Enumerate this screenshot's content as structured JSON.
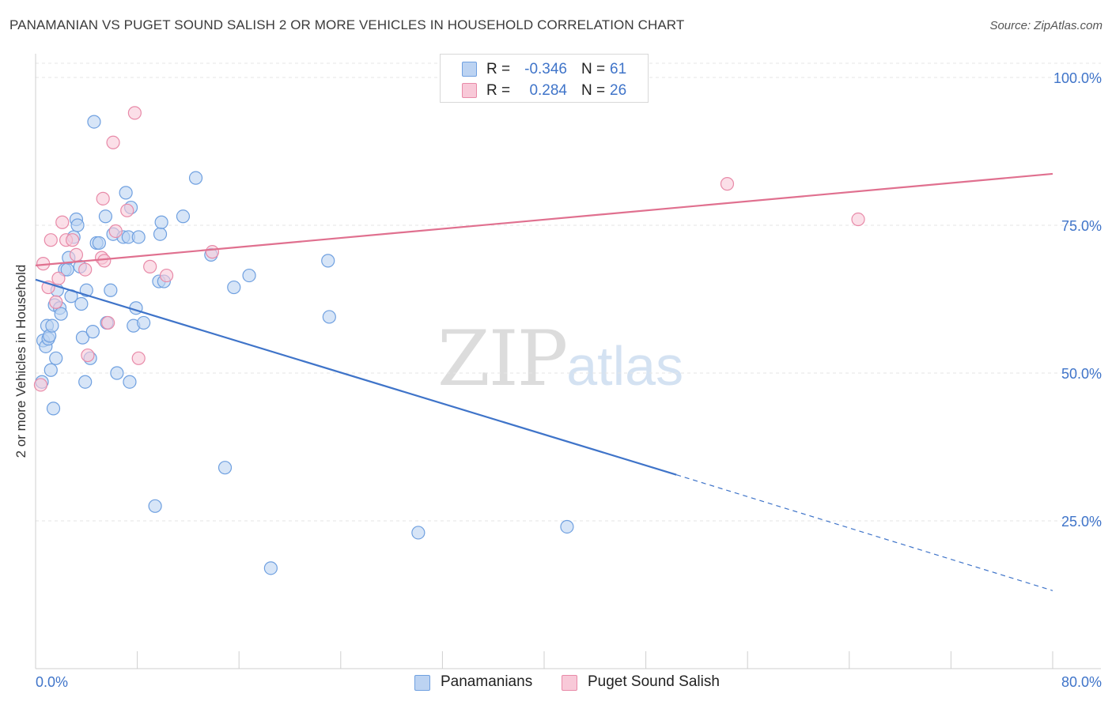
{
  "header": {
    "title": "PANAMANIAN VS PUGET SOUND SALISH 2 OR MORE VEHICLES IN HOUSEHOLD CORRELATION CHART",
    "source": "Source: ZipAtlas.com"
  },
  "watermark": {
    "zip": "ZIP",
    "atlas": "atlas"
  },
  "stats": [
    {
      "r_label": "R =",
      "r_value": "-0.346",
      "n_label": "N =",
      "n_value": "61",
      "color": "#6fa0e0",
      "fill": "#bcd3f2"
    },
    {
      "r_label": "R =",
      "r_value": "0.284",
      "n_label": "N =",
      "n_value": "26",
      "color": "#e88aa8",
      "fill": "#f8c9d8"
    }
  ],
  "legend": [
    {
      "label": "Panamanians",
      "color": "#6fa0e0",
      "fill": "#bcd3f2"
    },
    {
      "label": "Puget Sound Salish",
      "color": "#e88aa8",
      "fill": "#f8c9d8"
    }
  ],
  "chart_data": {
    "type": "scatter",
    "title": "PANAMANIAN VS PUGET SOUND SALISH 2 OR MORE VEHICLES IN HOUSEHOLD CORRELATION CHART",
    "xlabel": "",
    "ylabel": "2 or more Vehicles in Household",
    "xlim": [
      0,
      80
    ],
    "ylim": [
      0,
      102
    ],
    "x_tick_labels": [
      "0.0%",
      "80.0%"
    ],
    "y_tick_labels": [
      "25.0%",
      "50.0%",
      "75.0%",
      "100.0%"
    ],
    "y_ticks": [
      25,
      50,
      75,
      100
    ],
    "grid": true,
    "legend_position": "bottom",
    "series": [
      {
        "name": "Panamanians",
        "color": "#3f74c9",
        "point_fill": "#bcd3f2",
        "point_stroke": "#6fa0e0",
        "points": [
          [
            0.6,
            55.5
          ],
          [
            0.5,
            48.5
          ],
          [
            0.8,
            54.5
          ],
          [
            0.9,
            58
          ],
          [
            1.0,
            55.8
          ],
          [
            1.1,
            56.3
          ],
          [
            1.2,
            50.5
          ],
          [
            1.3,
            58
          ],
          [
            1.4,
            44
          ],
          [
            1.5,
            61.5
          ],
          [
            1.6,
            52.5
          ],
          [
            1.7,
            64
          ],
          [
            1.9,
            61
          ],
          [
            2.0,
            60
          ],
          [
            2.3,
            67.5
          ],
          [
            2.5,
            67.5
          ],
          [
            2.6,
            69.5
          ],
          [
            2.8,
            63
          ],
          [
            3.0,
            73
          ],
          [
            3.2,
            76
          ],
          [
            3.3,
            75
          ],
          [
            3.5,
            68
          ],
          [
            3.6,
            61.7
          ],
          [
            3.7,
            56
          ],
          [
            3.9,
            48.5
          ],
          [
            4.0,
            64
          ],
          [
            4.3,
            52.5
          ],
          [
            4.5,
            57
          ],
          [
            4.6,
            92.5
          ],
          [
            4.8,
            72
          ],
          [
            5.0,
            72
          ],
          [
            5.5,
            76.5
          ],
          [
            5.6,
            58.5
          ],
          [
            5.9,
            64
          ],
          [
            6.1,
            73.5
          ],
          [
            6.4,
            50
          ],
          [
            6.9,
            73
          ],
          [
            7.1,
            80.5
          ],
          [
            7.3,
            73
          ],
          [
            7.4,
            48.5
          ],
          [
            7.5,
            78
          ],
          [
            7.7,
            58
          ],
          [
            7.9,
            61
          ],
          [
            8.1,
            73
          ],
          [
            8.5,
            58.5
          ],
          [
            9.4,
            27.5
          ],
          [
            9.7,
            65.5
          ],
          [
            9.8,
            73.5
          ],
          [
            9.9,
            75.5
          ],
          [
            10.1,
            65.5
          ],
          [
            11.6,
            76.5
          ],
          [
            12.6,
            83
          ],
          [
            13.8,
            70
          ],
          [
            14.9,
            34
          ],
          [
            15.6,
            64.5
          ],
          [
            16.8,
            66.5
          ],
          [
            18.5,
            17
          ],
          [
            23.0,
            69
          ],
          [
            23.1,
            59.5
          ],
          [
            30.1,
            23
          ],
          [
            41.8,
            24
          ]
        ],
        "trend": {
          "x0": 0,
          "y0": 65.8,
          "x1": 50.4,
          "y1": 32.8,
          "dashed_to_x": 80,
          "dashed_to_y": 13.2
        }
      },
      {
        "name": "Puget Sound Salish",
        "color": "#e0708f",
        "point_fill": "#f8c9d8",
        "point_stroke": "#e88aa8",
        "points": [
          [
            0.4,
            48
          ],
          [
            0.6,
            68.5
          ],
          [
            1.0,
            64.5
          ],
          [
            1.2,
            72.5
          ],
          [
            1.6,
            62
          ],
          [
            1.8,
            66
          ],
          [
            2.1,
            75.5
          ],
          [
            2.4,
            72.5
          ],
          [
            2.9,
            72.5
          ],
          [
            3.2,
            70
          ],
          [
            3.9,
            67.5
          ],
          [
            4.1,
            53
          ],
          [
            5.2,
            69.5
          ],
          [
            5.3,
            79.5
          ],
          [
            5.4,
            69
          ],
          [
            5.7,
            58.5
          ],
          [
            6.1,
            89
          ],
          [
            6.3,
            74
          ],
          [
            7.2,
            77.5
          ],
          [
            7.8,
            94
          ],
          [
            8.1,
            52.5
          ],
          [
            9.0,
            68
          ],
          [
            10.3,
            66.5
          ],
          [
            13.9,
            70.5
          ],
          [
            54.4,
            82
          ],
          [
            64.7,
            76
          ]
        ],
        "trend": {
          "x0": 0,
          "y0": 68.2,
          "x1": 80,
          "y1": 83.7
        }
      }
    ]
  }
}
